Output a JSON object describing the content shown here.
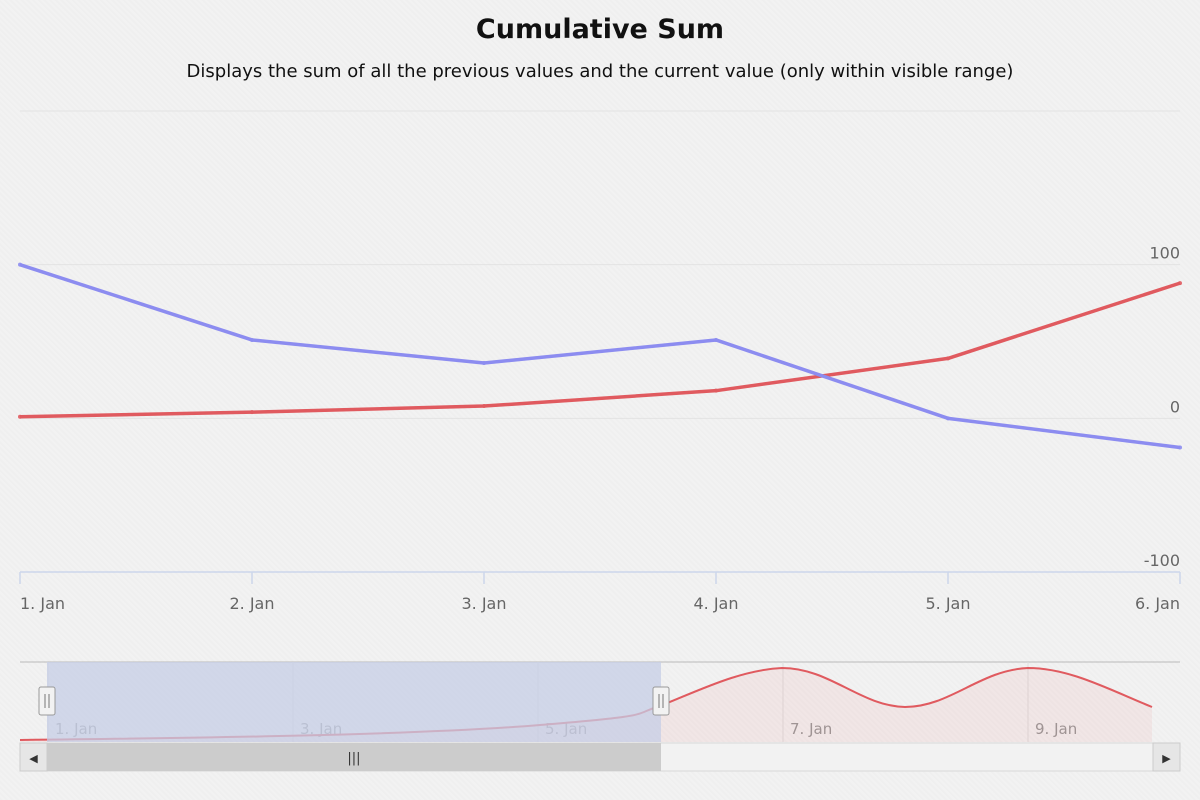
{
  "chart_data": {
    "type": "line",
    "title": "Cumulative Sum",
    "subtitle": "Displays the sum of all the previous values and the current value (only within visible range)",
    "xlabel": "",
    "ylabel": "",
    "x": [
      "1. Jan",
      "2. Jan",
      "3. Jan",
      "4. Jan",
      "5. Jan",
      "6. Jan"
    ],
    "ylim": [
      -100,
      200
    ],
    "y_ticks": [
      "-100",
      "0",
      "100"
    ],
    "y_tick_values": [
      -100,
      0,
      100
    ],
    "grid": true,
    "y_axis_position": "right",
    "series": [
      {
        "color": "#e05a5f",
        "values": [
          1,
          4,
          8,
          18,
          39,
          88
        ]
      },
      {
        "color": "#8c8cf0",
        "values": [
          100,
          51,
          36,
          51,
          0,
          -19
        ]
      }
    ]
  },
  "navigator": {
    "labels": [
      "1. Jan",
      "3. Jan",
      "5. Jan",
      "7. Jan",
      "9. Jan"
    ],
    "series_color": "#e05a5f",
    "selection_color": "#c6cde6",
    "scrollbar": {
      "left_arrow": "◀",
      "right_arrow": "▶",
      "grip": "|||"
    }
  }
}
